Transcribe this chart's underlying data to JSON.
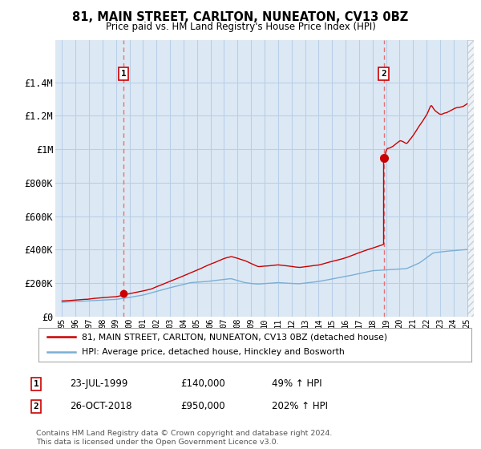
{
  "title": "81, MAIN STREET, CARLTON, NUNEATON, CV13 0BZ",
  "subtitle": "Price paid vs. HM Land Registry's House Price Index (HPI)",
  "legend_label_red": "81, MAIN STREET, CARLTON, NUNEATON, CV13 0BZ (detached house)",
  "legend_label_blue": "HPI: Average price, detached house, Hinckley and Bosworth",
  "annotation1_label": "1",
  "annotation1_date": "23-JUL-1999",
  "annotation1_price": "£140,000",
  "annotation1_hpi": "49% ↑ HPI",
  "annotation1_year": 1999.55,
  "annotation1_value": 140000,
  "annotation2_label": "2",
  "annotation2_date": "26-OCT-2018",
  "annotation2_price": "£950,000",
  "annotation2_hpi": "202% ↑ HPI",
  "annotation2_year": 2018.82,
  "annotation2_value": 950000,
  "footer": "Contains HM Land Registry data © Crown copyright and database right 2024.\nThis data is licensed under the Open Government Licence v3.0.",
  "ylim": [
    0,
    1650000
  ],
  "xlim": [
    1994.5,
    2025.5
  ],
  "yticks": [
    0,
    200000,
    400000,
    600000,
    800000,
    1000000,
    1200000,
    1400000
  ],
  "ytick_labels": [
    "£0",
    "£200K",
    "£400K",
    "£600K",
    "£800K",
    "£1M",
    "£1.2M",
    "£1.4M"
  ],
  "background_color": "#ffffff",
  "plot_bg_color": "#dce9f5",
  "grid_color": "#b8cfe8",
  "red_color": "#cc0000",
  "blue_color": "#7aafd4",
  "vline_color": "#e87070",
  "hatch_start": 2025.0,
  "xtick_years": [
    1995,
    1996,
    1997,
    1998,
    1999,
    2000,
    2001,
    2002,
    2003,
    2004,
    2005,
    2006,
    2007,
    2008,
    2009,
    2010,
    2011,
    2012,
    2013,
    2014,
    2015,
    2016,
    2017,
    2018,
    2019,
    2020,
    2021,
    2022,
    2023,
    2024,
    2025
  ]
}
